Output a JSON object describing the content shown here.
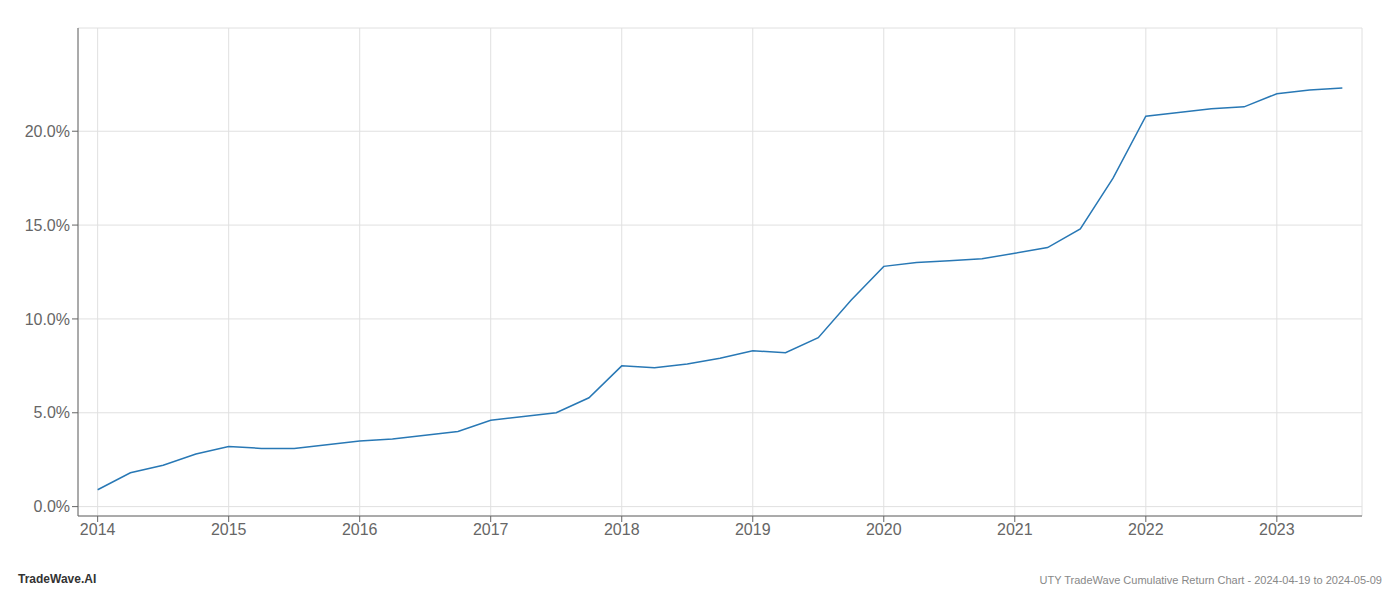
{
  "chart_data": {
    "type": "line",
    "title": "UTY TradeWave Cumulative Return Chart - 2024-04-19 to 2024-05-09",
    "annotations": [
      "TradeWave.AI"
    ],
    "color": "#2878b5",
    "grid": true,
    "x": [
      2014.0,
      2014.25,
      2014.5,
      2014.75,
      2015.0,
      2015.25,
      2015.5,
      2015.75,
      2016.0,
      2016.25,
      2016.5,
      2016.75,
      2017.0,
      2017.25,
      2017.5,
      2017.75,
      2018.0,
      2018.25,
      2018.5,
      2018.75,
      2019.0,
      2019.25,
      2019.5,
      2019.75,
      2020.0,
      2020.25,
      2020.5,
      2020.75,
      2021.0,
      2021.25,
      2021.5,
      2021.75,
      2022.0,
      2022.25,
      2022.5,
      2022.75,
      2023.0,
      2023.25,
      2023.5
    ],
    "values": [
      0.009,
      0.018,
      0.022,
      0.028,
      0.032,
      0.031,
      0.031,
      0.033,
      0.035,
      0.036,
      0.038,
      0.04,
      0.046,
      0.048,
      0.05,
      0.058,
      0.075,
      0.074,
      0.076,
      0.079,
      0.083,
      0.082,
      0.09,
      0.11,
      0.128,
      0.13,
      0.131,
      0.132,
      0.135,
      0.138,
      0.148,
      0.175,
      0.208,
      0.21,
      0.212,
      0.213,
      0.22,
      0.222,
      0.223
    ],
    "xlim": [
      2013.85,
      2023.65
    ],
    "ylim": [
      -0.005,
      0.255
    ],
    "xticks": [
      2014,
      2015,
      2016,
      2017,
      2018,
      2019,
      2020,
      2021,
      2022,
      2023
    ],
    "yticks": [
      {
        "value": 0.0,
        "label": "0.0%"
      },
      {
        "value": 0.05,
        "label": "5.0%"
      },
      {
        "value": 0.1,
        "label": "10.0%"
      },
      {
        "value": 0.15,
        "label": "15.0%"
      },
      {
        "value": 0.2,
        "label": "20.0%"
      }
    ]
  }
}
